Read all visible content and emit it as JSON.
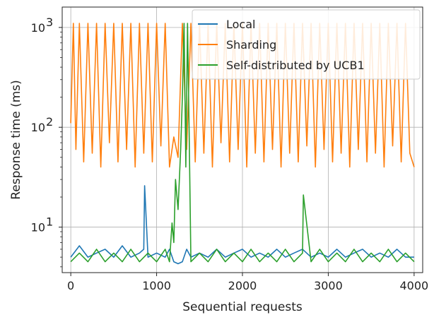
{
  "chart_data": {
    "type": "line",
    "xlabel": "Sequential requests",
    "ylabel": "Response time (ms)",
    "xlim": [
      -100,
      4100
    ],
    "ylim": [
      3.5,
      1600
    ],
    "yscale": "log",
    "grid": true,
    "legend_position": "top-right",
    "x_ticks": [
      0,
      1000,
      2000,
      3000,
      4000
    ],
    "x_tick_labels": [
      "0",
      "1000",
      "2000",
      "3000",
      "4000"
    ],
    "y_ticks": [
      10,
      100,
      1000
    ],
    "y_tick_labels": [
      "10",
      "10",
      "10"
    ],
    "y_tick_exponents": [
      "1",
      "2",
      "3"
    ],
    "series": [
      {
        "name": "Local",
        "color": "#1f77b4",
        "x": [
          0,
          100,
          200,
          300,
          400,
          500,
          600,
          700,
          800,
          850,
          860,
          900,
          1000,
          1100,
          1150,
          1200,
          1250,
          1300,
          1350,
          1400,
          1500,
          1600,
          1700,
          1800,
          1900,
          2000,
          2100,
          2200,
          2300,
          2400,
          2500,
          2600,
          2700,
          2800,
          2900,
          3000,
          3100,
          3200,
          3300,
          3400,
          3500,
          3600,
          3700,
          3800,
          3900,
          4000
        ],
        "values": [
          5,
          6.5,
          5,
          5.5,
          6,
          5,
          6.5,
          5,
          5.5,
          6,
          26,
          5,
          5.5,
          5,
          6,
          4.5,
          4.3,
          4.5,
          6,
          5,
          5.5,
          5,
          6,
          5,
          5.5,
          6,
          5,
          5.5,
          5,
          6,
          5,
          5.5,
          6,
          5,
          5.5,
          5,
          6,
          5,
          5.5,
          6,
          5,
          5.5,
          5,
          6,
          5,
          5
        ]
      },
      {
        "name": "Sharding",
        "color": "#ff7f0e",
        "x": [
          0,
          30,
          60,
          100,
          150,
          200,
          250,
          300,
          350,
          400,
          450,
          500,
          550,
          600,
          650,
          700,
          750,
          800,
          850,
          900,
          950,
          1000,
          1050,
          1100,
          1150,
          1200,
          1250,
          1300,
          1350,
          1400,
          1450,
          1500,
          1550,
          1600,
          1650,
          1700,
          1750,
          1800,
          1850,
          1900,
          1950,
          2000,
          2050,
          2100,
          2150,
          2200,
          2250,
          2300,
          2350,
          2400,
          2450,
          2500,
          2550,
          2600,
          2650,
          2700,
          2750,
          2800,
          2850,
          2900,
          2950,
          3000,
          3050,
          3100,
          3150,
          3200,
          3250,
          3300,
          3350,
          3400,
          3450,
          3500,
          3550,
          3600,
          3650,
          3700,
          3750,
          3800,
          3850,
          3900,
          3950,
          4000
        ],
        "values": [
          110,
          1100,
          60,
          1100,
          45,
          1100,
          55,
          1100,
          40,
          1100,
          70,
          1100,
          45,
          1100,
          60,
          1100,
          40,
          1100,
          55,
          1100,
          45,
          1100,
          65,
          1100,
          40,
          80,
          50,
          1100,
          60,
          1100,
          45,
          1100,
          55,
          1100,
          40,
          1100,
          70,
          1100,
          45,
          1100,
          60,
          1100,
          40,
          1100,
          55,
          1100,
          45,
          1100,
          60,
          1100,
          40,
          1100,
          55,
          1100,
          45,
          1100,
          65,
          1100,
          40,
          1100,
          60,
          1100,
          45,
          1100,
          55,
          1100,
          40,
          1100,
          60,
          1100,
          45,
          1100,
          55,
          1100,
          40,
          1100,
          65,
          1100,
          45,
          1100,
          55,
          40
        ]
      },
      {
        "name": "Self-distributed by UCB1",
        "color": "#2ca02c",
        "x": [
          0,
          100,
          200,
          300,
          400,
          500,
          600,
          700,
          800,
          900,
          1000,
          1100,
          1150,
          1180,
          1200,
          1220,
          1250,
          1280,
          1300,
          1320,
          1340,
          1360,
          1380,
          1400,
          1500,
          1600,
          1700,
          1800,
          1900,
          2000,
          2100,
          2200,
          2300,
          2400,
          2500,
          2600,
          2700,
          2710,
          2800,
          2900,
          3000,
          3100,
          3200,
          3300,
          3400,
          3500,
          3600,
          3700,
          3800,
          3900,
          4000
        ],
        "values": [
          4.5,
          5.5,
          4.5,
          6,
          4.5,
          5.5,
          4.5,
          6,
          4.5,
          5.5,
          4.5,
          6,
          4.5,
          11,
          7,
          30,
          15,
          60,
          200,
          1100,
          40,
          1100,
          80,
          4.5,
          5.5,
          4.5,
          6,
          4.5,
          5.5,
          4.5,
          6,
          4.5,
          5.5,
          4.5,
          6,
          4.5,
          5.5,
          21,
          4.5,
          6,
          4.5,
          5.5,
          4.5,
          6,
          4.5,
          5.5,
          4.5,
          6,
          4.5,
          5.5,
          4.5
        ]
      }
    ]
  }
}
